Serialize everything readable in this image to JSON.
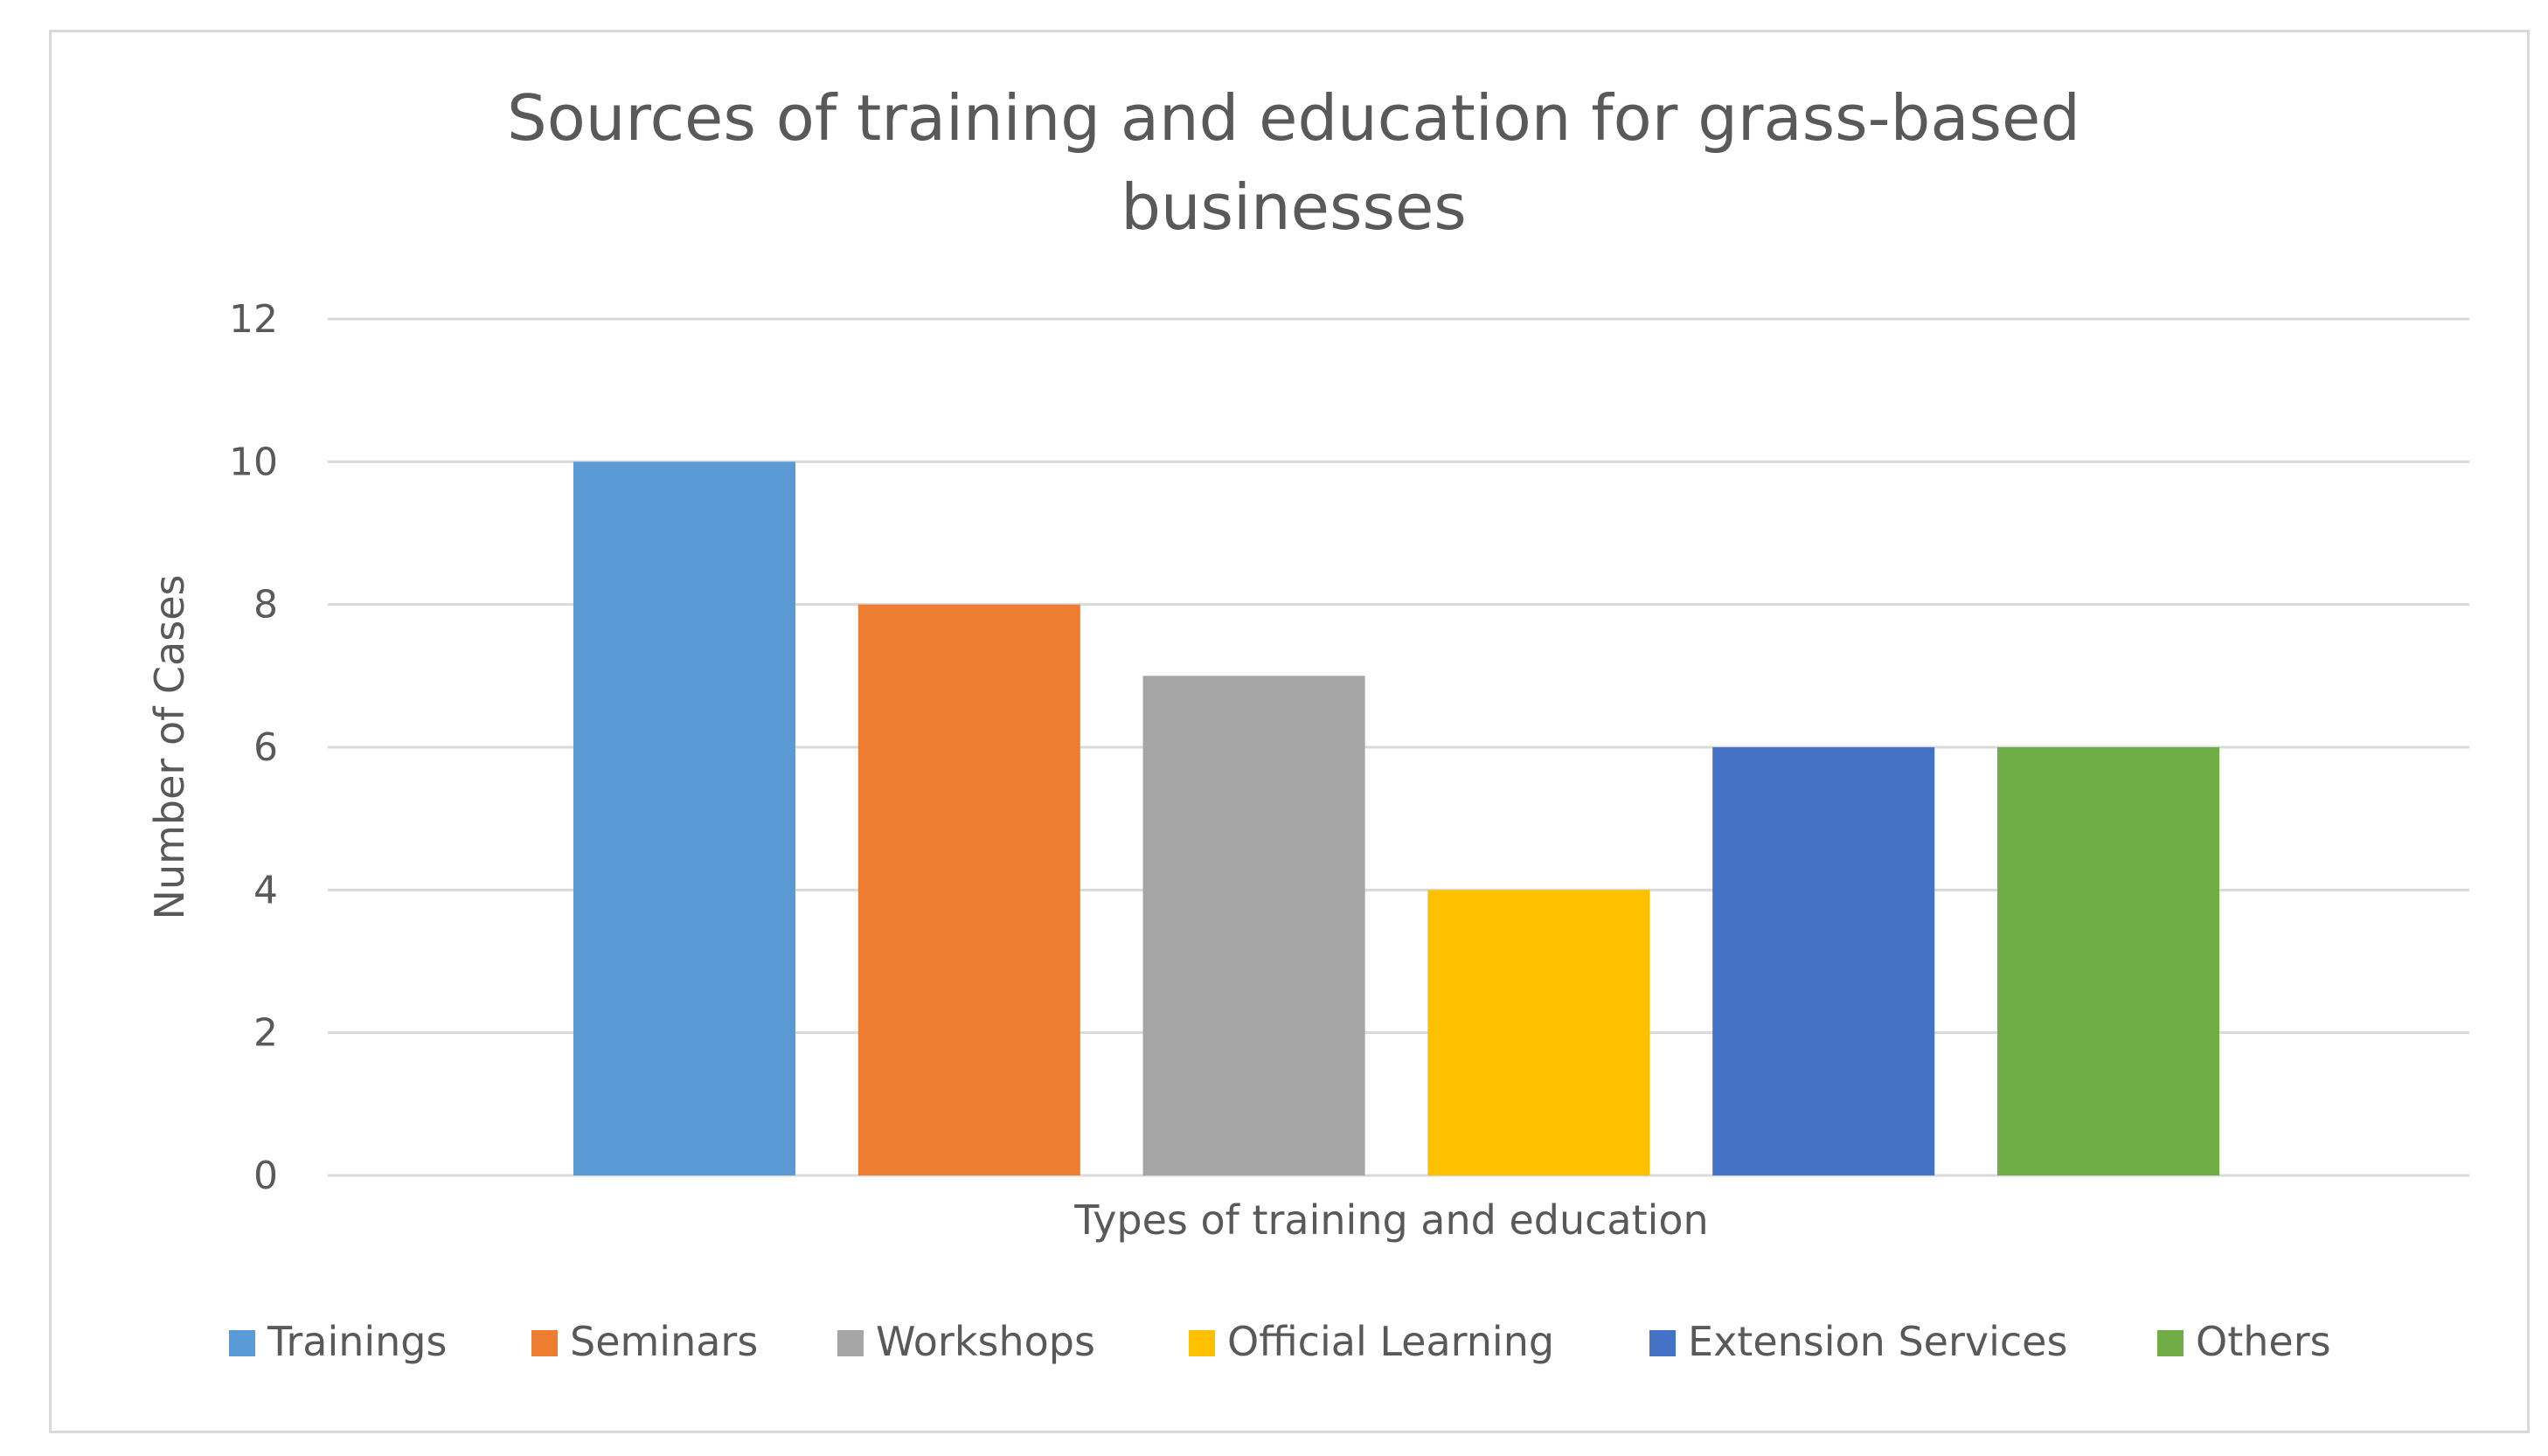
{
  "chart_data": {
    "type": "bar",
    "title": "Sources of training and education for grass-based businesses",
    "title_lines": [
      "Sources of training and education for grass-based",
      "businesses"
    ],
    "xlabel": "Types of training and education",
    "ylabel": "Number of Cases",
    "ylim": [
      0,
      12
    ],
    "yticks": [
      0,
      2,
      4,
      6,
      8,
      10,
      12
    ],
    "grid": true,
    "legend_position": "bottom",
    "series": [
      {
        "name": "Trainings",
        "value": 10,
        "color": "#5b9bd5"
      },
      {
        "name": "Seminars",
        "value": 8,
        "color": "#ed7d31"
      },
      {
        "name": "Workshops",
        "value": 7,
        "color": "#a5a5a5"
      },
      {
        "name": "Official Learning",
        "value": 4,
        "color": "#ffc000"
      },
      {
        "name": "Extension Services",
        "value": 6,
        "color": "#4472c4"
      },
      {
        "name": "Others",
        "value": 6,
        "color": "#70ad47"
      }
    ]
  }
}
